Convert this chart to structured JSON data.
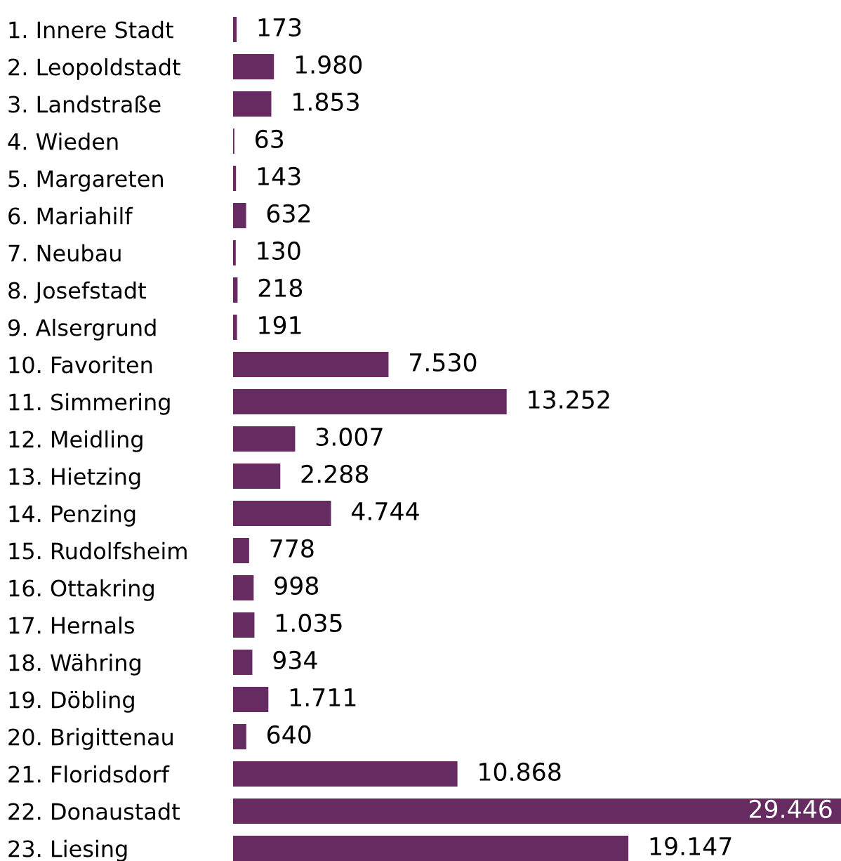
{
  "chart_data": {
    "type": "bar",
    "orientation": "horizontal",
    "categories": [
      "1. Innere Stadt",
      "2. Leopoldstadt",
      "3. Landstraße",
      "4. Wieden",
      "5. Margareten",
      "6. Mariahilf",
      "7. Neubau",
      "8. Josefstadt",
      "9. Alsergrund",
      "10. Favoriten",
      "11. Simmering",
      "12. Meidling",
      "13. Hietzing",
      "14. Penzing",
      "15. Rudolfsheim",
      "16. Ottakring",
      "17. Hernals",
      "18. Währing",
      "19. Döbling",
      "20. Brigittenau",
      "21. Floridsdorf",
      "22. Donaustadt",
      "23. Liesing"
    ],
    "values": [
      173,
      1980,
      1853,
      63,
      143,
      632,
      130,
      218,
      191,
      7530,
      13252,
      3007,
      2288,
      4744,
      778,
      998,
      1035,
      934,
      1711,
      640,
      10868,
      29446,
      19147
    ],
    "value_labels": [
      "173",
      "1.980",
      "1.853",
      "63",
      "143",
      "632",
      "130",
      "218",
      "191",
      "7.530",
      "13.252",
      "3.007",
      "2.288",
      "4.744",
      "778",
      "998",
      "1.035",
      "934",
      "1.711",
      "640",
      "10.868",
      "29.446",
      "19.147"
    ],
    "color": "#662c62",
    "grid": false,
    "legend": false
  }
}
